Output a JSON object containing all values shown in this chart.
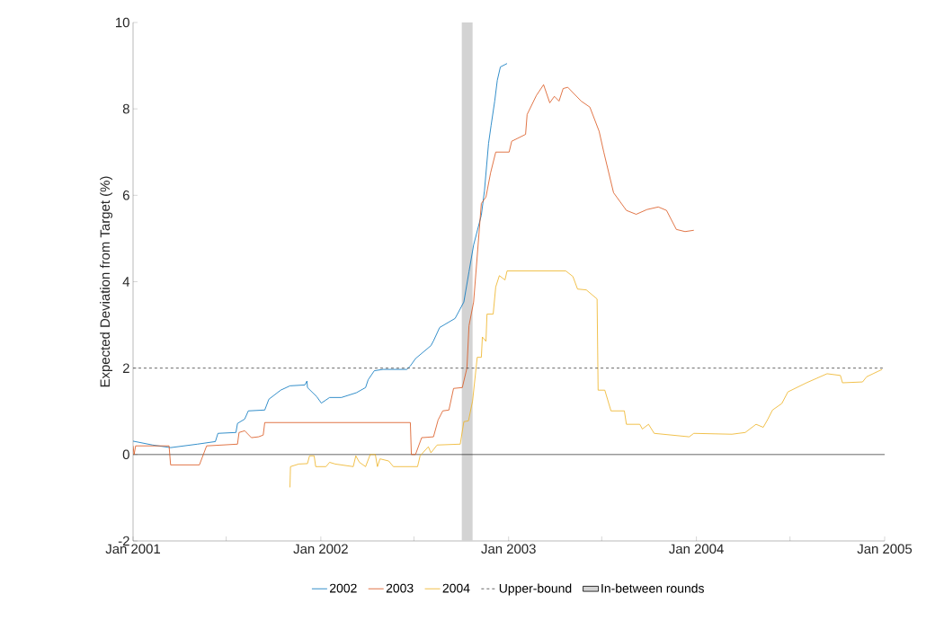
{
  "chart_data": {
    "type": "line",
    "ylabel": "Expected Deviation from Target (%)",
    "xlim": [
      "2001-01-01",
      "2005-01-01"
    ],
    "ylim": [
      -2,
      10
    ],
    "xticks": [
      {
        "value": "2001-01-01",
        "label": "Jan 2001"
      },
      {
        "value": "2001-07-01",
        "label": null
      },
      {
        "value": "2002-01-01",
        "label": "Jan 2002"
      },
      {
        "value": "2002-07-01",
        "label": null
      },
      {
        "value": "2003-01-01",
        "label": "Jan 2003"
      },
      {
        "value": "2003-07-01",
        "label": null
      },
      {
        "value": "2004-01-01",
        "label": "Jan 2004"
      },
      {
        "value": "2004-07-01",
        "label": null
      },
      {
        "value": "2005-01-01",
        "label": "Jan 2005"
      }
    ],
    "yticks": [
      -2,
      0,
      2,
      4,
      6,
      8,
      10
    ],
    "legend": "bottom",
    "series": [
      {
        "name": "2002",
        "color": "#0072bd",
        "x": [
          "2001-01-01",
          "2001-02-08",
          "2001-03-15",
          "2001-05-06",
          "2001-06-10",
          "2001-06-15",
          "2001-07-20",
          "2001-07-23",
          "2001-08-06",
          "2001-08-13",
          "2001-09-14",
          "2001-09-22",
          "2001-10-15",
          "2001-11-02",
          "2001-12-01",
          "2001-12-05",
          "2001-12-06",
          "2001-12-24",
          "2002-01-02",
          "2002-01-18",
          "2002-02-10",
          "2002-03-11",
          "2002-03-29",
          "2002-04-03",
          "2002-04-15",
          "2002-05-02",
          "2002-06-17",
          "2002-06-24",
          "2002-07-04",
          "2002-08-03",
          "2002-08-08",
          "2002-08-20",
          "2002-09-19",
          "2002-10-06",
          "2002-10-16",
          "2002-10-25",
          "2002-11-09",
          "2002-11-15",
          "2002-11-23",
          "2002-11-28",
          "2002-12-05",
          "2002-12-10",
          "2002-12-16",
          "2002-12-29"
        ],
        "values": [
          0.31,
          0.22,
          0.16,
          0.24,
          0.3,
          0.49,
          0.51,
          0.72,
          0.82,
          1.01,
          1.03,
          1.28,
          1.49,
          1.59,
          1.61,
          1.7,
          1.55,
          1.34,
          1.19,
          1.32,
          1.32,
          1.43,
          1.55,
          1.73,
          1.94,
          1.97,
          1.97,
          2.05,
          2.22,
          2.52,
          2.63,
          2.94,
          3.15,
          3.53,
          4.23,
          4.85,
          5.54,
          6.1,
          7.2,
          7.62,
          8.18,
          8.66,
          8.97,
          9.05
        ]
      },
      {
        "name": "2003",
        "color": "#d95319",
        "x": [
          "2001-01-01",
          "2001-01-03",
          "2001-01-06",
          "2001-03-12",
          "2001-03-15",
          "2001-05-10",
          "2001-05-24",
          "2001-07-23",
          "2001-07-26",
          "2001-08-06",
          "2001-08-19",
          "2001-09-02",
          "2001-09-11",
          "2001-09-14",
          "2002-06-24",
          "2002-06-26",
          "2002-07-04",
          "2002-07-16",
          "2002-08-08",
          "2002-08-17",
          "2002-08-26",
          "2002-09-07",
          "2002-09-16",
          "2002-10-03",
          "2002-10-12",
          "2002-10-16",
          "2002-10-25",
          "2002-11-09",
          "2002-11-18",
          "2002-11-27",
          "2002-12-07",
          "2003-01-02",
          "2003-01-07",
          "2003-02-03",
          "2003-02-06",
          "2003-02-24",
          "2003-03-10",
          "2003-03-22",
          "2003-03-31",
          "2003-04-09",
          "2003-04-17",
          "2003-04-26",
          "2003-05-22",
          "2003-06-08",
          "2003-06-26",
          "2003-07-05",
          "2003-07-24",
          "2003-08-18",
          "2003-09-06",
          "2003-09-27",
          "2003-10-19",
          "2003-11-04",
          "2003-11-23",
          "2003-12-10",
          "2003-12-27"
        ],
        "values": [
          0.2,
          0.0,
          0.2,
          0.2,
          -0.24,
          -0.24,
          0.2,
          0.24,
          0.51,
          0.55,
          0.39,
          0.41,
          0.45,
          0.74,
          0.74,
          0.0,
          0.0,
          0.39,
          0.41,
          0.8,
          1.01,
          1.03,
          1.53,
          1.55,
          2.0,
          2.98,
          3.53,
          5.81,
          5.96,
          6.52,
          7.0,
          7.0,
          7.25,
          7.41,
          7.87,
          8.31,
          8.56,
          8.14,
          8.29,
          8.18,
          8.47,
          8.5,
          8.18,
          8.04,
          7.48,
          7.0,
          6.06,
          5.65,
          5.56,
          5.67,
          5.73,
          5.65,
          5.21,
          5.16,
          5.19
        ]
      },
      {
        "name": "2004",
        "color": "#edb120",
        "x": [
          "2001-11-02",
          "2001-11-03",
          "2001-11-19",
          "2001-12-06",
          "2001-12-10",
          "2001-12-19",
          "2001-12-22",
          "2002-01-11",
          "2002-01-18",
          "2002-01-29",
          "2002-03-05",
          "2002-03-10",
          "2002-03-17",
          "2002-03-29",
          "2002-04-07",
          "2002-04-17",
          "2002-04-21",
          "2002-04-26",
          "2002-05-13",
          "2002-05-22",
          "2002-07-08",
          "2002-07-13",
          "2002-07-29",
          "2002-08-03",
          "2002-08-15",
          "2002-09-29",
          "2002-10-06",
          "2002-10-15",
          "2002-10-23",
          "2002-11-01",
          "2002-11-09",
          "2002-11-11",
          "2002-11-18",
          "2002-11-20",
          "2002-12-02",
          "2002-12-07",
          "2002-12-14",
          "2002-12-25",
          "2002-12-29",
          "2003-04-22",
          "2003-05-06",
          "2003-05-15",
          "2003-06-01",
          "2003-06-22",
          "2003-06-24",
          "2003-07-07",
          "2003-07-19",
          "2003-08-14",
          "2003-08-18",
          "2003-09-13",
          "2003-09-18",
          "2003-09-30",
          "2003-10-11",
          "2003-12-18",
          "2003-12-27",
          "2004-03-10",
          "2004-04-05",
          "2004-04-26",
          "2004-05-10",
          "2004-05-19",
          "2004-05-28",
          "2004-06-15",
          "2004-06-27",
          "2004-08-02",
          "2004-09-11",
          "2004-10-07",
          "2004-10-11",
          "2004-11-19",
          "2004-11-27",
          "2004-12-27"
        ],
        "values": [
          -0.76,
          -0.28,
          -0.22,
          -0.21,
          -0.03,
          -0.03,
          -0.28,
          -0.28,
          -0.18,
          -0.22,
          -0.28,
          -0.03,
          -0.18,
          -0.28,
          0.0,
          0.0,
          -0.28,
          -0.1,
          -0.15,
          -0.28,
          -0.28,
          -0.03,
          0.18,
          0.04,
          0.22,
          0.24,
          0.76,
          0.78,
          1.24,
          2.25,
          2.25,
          2.72,
          2.62,
          3.25,
          3.25,
          3.88,
          4.14,
          4.04,
          4.25,
          4.25,
          4.12,
          3.83,
          3.81,
          3.6,
          1.49,
          1.49,
          1.01,
          1.01,
          0.7,
          0.7,
          0.59,
          0.7,
          0.49,
          0.41,
          0.49,
          0.47,
          0.51,
          0.7,
          0.63,
          0.82,
          1.03,
          1.18,
          1.45,
          1.66,
          1.87,
          1.83,
          1.66,
          1.68,
          1.8,
          1.97
        ]
      }
    ],
    "ref_lines": [
      {
        "axis": "y",
        "value": 2,
        "label": "Upper-bound",
        "color": "#404040",
        "line_style": "dashed"
      },
      {
        "axis": "y",
        "value": 0,
        "color": "#000000",
        "line_style": "solid"
      }
    ],
    "bands": [
      {
        "axis": "x",
        "from": "2002-10-02",
        "to": "2002-10-23",
        "label": "In-between rounds",
        "color": "#d3d3d3"
      }
    ]
  }
}
